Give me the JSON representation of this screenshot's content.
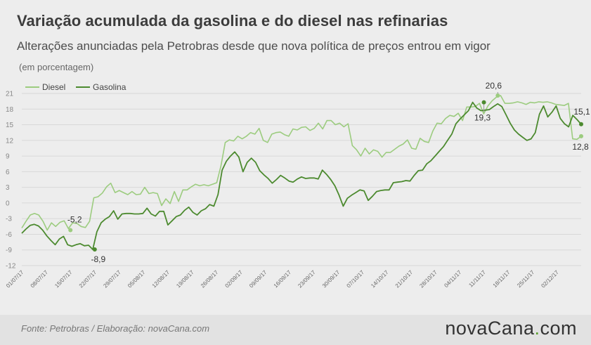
{
  "title": "Variação acumulada da gasolina e do diesel nas refinarias",
  "subtitle": "Alterações anunciadas pela Petrobras desde que nova política de preços entrou em vigor",
  "unit": "(em porcentagem)",
  "footer": {
    "source": "Fonte:  Petrobras  / Elaboração:  novaCana.com",
    "brand_main": "novaCana",
    "brand_dot": ".",
    "brand_suffix": "com"
  },
  "colors": {
    "diesel": "#9ccc7f",
    "gasolina": "#4c8a2f",
    "grid": "#d8d8d8",
    "background": "#ededed"
  },
  "chart_data": {
    "type": "line",
    "title": "Variação acumulada da gasolina e do diesel nas refinarias",
    "ylabel": "(em porcentagem)",
    "ylim": [
      -12,
      21
    ],
    "yticks": [
      -12,
      -9,
      -6,
      -3,
      0,
      3,
      6,
      9,
      12,
      15,
      18,
      21
    ],
    "grid": true,
    "legend": "top-left",
    "x_start": "01/07/17",
    "x_end": "09/12/17",
    "xticks": [
      "01/07/17",
      "08/07/17",
      "15/07/17",
      "22/07/17",
      "29/07/17",
      "05/08/17",
      "12/08/17",
      "19/08/17",
      "26/08/17",
      "02/09/17",
      "09/09/17",
      "16/09/17",
      "23/09/17",
      "30/09/17",
      "07/10/17",
      "14/10/17",
      "21/10/17",
      "28/10/17",
      "04/11/17",
      "11/11/17",
      "18/11/17",
      "25/11/17",
      "02/12/17"
    ],
    "series": [
      {
        "name": "Diesel",
        "values": [
          -4.8,
          -3.5,
          -2.3,
          -2.0,
          -2.3,
          -3.5,
          -5.2,
          -3.8,
          -4.5,
          -3.7,
          -3.4,
          -4.9,
          -3.8,
          -3.9,
          -4.5,
          -4.7,
          -3.5,
          1.0,
          1.2,
          1.9,
          3.1,
          3.8,
          2.0,
          2.4,
          2.0,
          1.6,
          2.2,
          1.6,
          1.7,
          3.0,
          1.8,
          2.0,
          1.8,
          -0.5,
          0.8,
          -0.1,
          2.2,
          0.3,
          2.5,
          2.5,
          3.1,
          3.6,
          3.3,
          3.5,
          3.3,
          3.6,
          3.9,
          7.1,
          11.6,
          12.1,
          11.9,
          12.8,
          12.3,
          12.8,
          13.5,
          13.2,
          14.3,
          12.0,
          11.6,
          13.2,
          13.5,
          13.6,
          13.1,
          12.8,
          14.2,
          14.0,
          14.5,
          14.6,
          13.9,
          14.3,
          15.3,
          14.2,
          15.8,
          15.8,
          15.0,
          15.3,
          14.6,
          15.2,
          11.0,
          10.2,
          9.0,
          10.5,
          9.4,
          10.2,
          9.9,
          8.8,
          9.7,
          9.7,
          10.3,
          10.9,
          11.3,
          12.1,
          10.5,
          10.3,
          12.4,
          11.8,
          11.6,
          13.8,
          15.3,
          15.2,
          16.2,
          16.8,
          16.6,
          17.2,
          15.8,
          18.4,
          18.4,
          18.5,
          19.1,
          17.1,
          18.6,
          19.6,
          20.3,
          20.6,
          19.1,
          19.1,
          19.2,
          19.4,
          19.2,
          18.9,
          19.3,
          19.2,
          19.4,
          19.3,
          19.4,
          19.2,
          18.9,
          18.8,
          18.7,
          19.1,
          12.3,
          12.2,
          12.8
        ],
        "annotations": [
          {
            "x": "15/07/17",
            "value": -5.2,
            "label": "-5,2"
          },
          {
            "x": "15/11/17",
            "value": 20.6,
            "label": "20,6"
          },
          {
            "x": "09/12/17",
            "value": 12.8,
            "label": "12,8"
          }
        ]
      },
      {
        "name": "Gasolina",
        "values": [
          -5.8,
          -5.0,
          -4.3,
          -4.1,
          -4.4,
          -5.2,
          -6.3,
          -7.2,
          -8.0,
          -6.9,
          -6.4,
          -8.0,
          -8.3,
          -8.0,
          -7.8,
          -8.2,
          -8.1,
          -8.9,
          -5.5,
          -3.8,
          -3.1,
          -2.6,
          -1.5,
          -3.1,
          -2.1,
          -2.0,
          -2.0,
          -2.1,
          -2.1,
          -2.0,
          -1.0,
          -2.1,
          -2.5,
          -1.6,
          -1.6,
          -4.2,
          -3.4,
          -2.6,
          -2.3,
          -1.4,
          -0.8,
          -1.8,
          -2.3,
          -1.5,
          -1.1,
          -0.3,
          -0.6,
          1.6,
          6.3,
          8.0,
          9.0,
          9.8,
          8.8,
          6.0,
          7.8,
          8.6,
          7.8,
          6.2,
          5.4,
          4.7,
          3.8,
          4.5,
          5.3,
          4.8,
          4.2,
          4.0,
          4.6,
          5.0,
          4.7,
          4.8,
          4.8,
          4.6,
          6.3,
          5.5,
          4.5,
          3.3,
          1.5,
          -0.6,
          0.9,
          1.5,
          2.0,
          2.5,
          2.3,
          0.5,
          1.3,
          2.2,
          2.4,
          2.5,
          2.5,
          3.9,
          4.0,
          4.1,
          4.3,
          4.2,
          5.3,
          6.2,
          6.3,
          7.5,
          8.1,
          9.0,
          9.9,
          10.8,
          12.0,
          13.2,
          15.2,
          16.1,
          16.9,
          17.7,
          19.3,
          18.2,
          17.7,
          17.8,
          17.9,
          18.5,
          19.0,
          18.5,
          16.9,
          15.3,
          14.0,
          13.2,
          12.6,
          12.0,
          12.3,
          13.5,
          17.0,
          18.6,
          16.5,
          17.4,
          18.6,
          16.2,
          15.2,
          14.6,
          16.8,
          16.0,
          15.1
        ],
        "annotations": [
          {
            "x": "22/07/17",
            "value": -8.9,
            "label": "-8,9"
          },
          {
            "x": "11/11/17",
            "value": 19.3,
            "label": "19,3"
          },
          {
            "x": "09/12/17",
            "value": 15.1,
            "label": "15,1"
          }
        ]
      }
    ]
  }
}
